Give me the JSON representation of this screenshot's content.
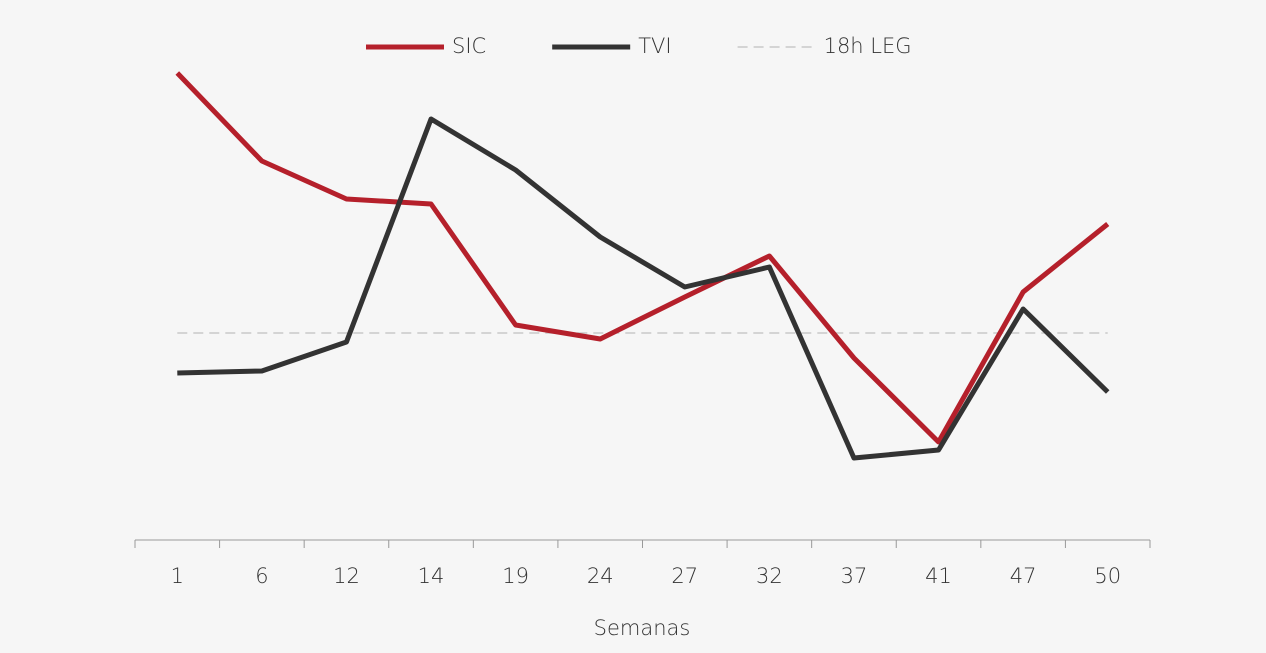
{
  "chart_data": {
    "type": "line",
    "x_label": "Semanas",
    "categories": [
      "1",
      "6",
      "12",
      "14",
      "19",
      "24",
      "27",
      "32",
      "37",
      "41",
      "47",
      "50"
    ],
    "series": [
      {
        "name": "SIC",
        "color": "#b5202b",
        "values": [
          93.4,
          75.8,
          68.2,
          67.2,
          43,
          40.2,
          48.6,
          56.8,
          36.4,
          19.6,
          49.6,
          63.2
        ]
      },
      {
        "name": "TVI",
        "color": "#333333",
        "values": [
          33.4,
          33.8,
          39.6,
          84.2,
          74,
          60.6,
          50.6,
          54.6,
          16.4,
          18,
          46.2,
          29.6
        ]
      },
      {
        "name": "18h LEG",
        "color": "#c8c8c8",
        "dashed": true,
        "values": [
          41.4,
          41.4,
          41.4,
          41.4,
          41.4,
          41.4,
          41.4,
          41.4,
          41.4,
          41.4,
          41.4,
          41.4
        ]
      }
    ],
    "ylim": [
      0,
      100
    ],
    "legend": "top"
  }
}
